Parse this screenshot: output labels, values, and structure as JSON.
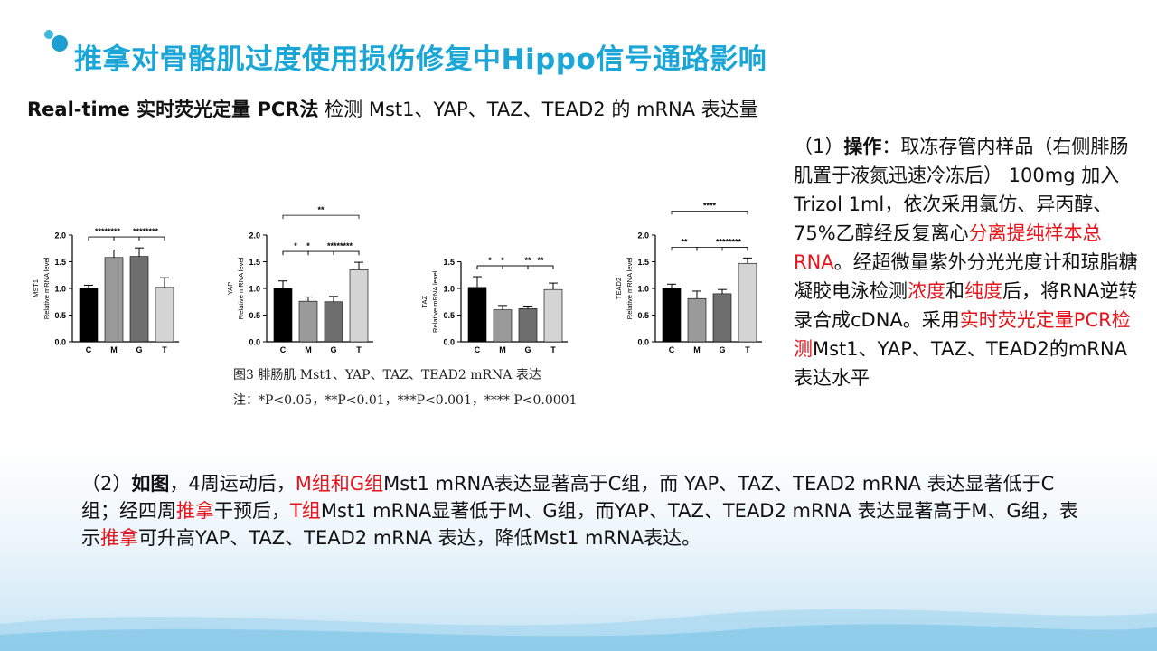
{
  "title": "推拿对骨骼肌过度使用损伤修复中Hippo信号通路影响",
  "subtitle": {
    "bold_part": "Real-time 实时荧光定量 PCR法",
    "rest": " 检测 Mst1、YAP、TAZ、TEAD2 的 mRNA 表达量"
  },
  "figure": {
    "caption": "图3  腓肠肌 Mst1、YAP、TAZ、TEAD2 mRNA 表达",
    "note": "注：*P<0.05，**P<0.01，***P<0.001，**** P<0.0001"
  },
  "right_panel": {
    "p1": "（1）",
    "p2": "操作",
    "p3": "：取冻存管内样品（右侧腓肠肌置于液氮迅速冷冻后） 100mg 加入 Trizol 1ml，依次采用氯仿、异丙醇、75%乙醇经反复离心",
    "p4": "分离提纯样本总RNA",
    "p5": "。经超微量紫外分光光度计和琼脂糖凝胶电泳检测",
    "p6": "浓度",
    "p7": "和",
    "p8": "纯度",
    "p9": "后，将RNA逆转录合成cDNA。采用",
    "p10": "实时荧光定量PCR检测",
    "p11": "Mst1、YAP、TAZ、TEAD2的mRNA表达水平"
  },
  "bottom_panel": {
    "b1": "（2）",
    "b2": "如图",
    "b3": "，4周运动后，",
    "b4": "M组和G组",
    "b5": "Mst1 mRNA表达显著高于C组，而 YAP、TAZ、TEAD2 mRNA 表达显著低于C组；经四周",
    "b6": "推拿",
    "b7": "干预后，",
    "b8": "T组",
    "b9": "Mst1 mRNA显著低于M、G组，而YAP、TAZ、TEAD2 mRNA 表达显著高于M、G组，表示",
    "b10": "推拿",
    "b11": "可升高YAP、TAZ、TEAD2 mRNA 表达，降低Mst1 mRNA表达。"
  },
  "colors": {
    "title": "#1aa7d8",
    "highlight": "#e8121a",
    "bar_fills": [
      "#000000",
      "#9a9a9a",
      "#6e6e6e",
      "#d4d4d4"
    ]
  },
  "chart_data": [
    {
      "type": "bar",
      "ylabel": "MST1\nRelative mRNA level",
      "categories": [
        "C",
        "M",
        "G",
        "T"
      ],
      "values": [
        1.0,
        1.58,
        1.6,
        1.02
      ],
      "errors": [
        0.06,
        0.14,
        0.16,
        0.18
      ],
      "ylim": [
        0,
        2.0
      ],
      "yticks": [
        "0.0",
        "0.5",
        "1.0",
        "1.5",
        "2.0"
      ],
      "significance": [
        {
          "from": "C",
          "to": "M",
          "label": "****"
        },
        {
          "from": "G",
          "to": "T",
          "label": "****"
        },
        {
          "from": "C",
          "to": "G",
          "label": "****"
        },
        {
          "from": "M",
          "to": "T",
          "label": "****"
        }
      ]
    },
    {
      "type": "bar",
      "ylabel": "YAP\nRelative mRNA level",
      "categories": [
        "C",
        "M",
        "G",
        "T"
      ],
      "values": [
        1.0,
        0.76,
        0.75,
        1.35
      ],
      "errors": [
        0.14,
        0.08,
        0.1,
        0.14
      ],
      "ylim": [
        0,
        2.0
      ],
      "yticks": [
        "0.0",
        "0.5",
        "1.0",
        "1.5",
        "2.0"
      ],
      "significance": [
        {
          "from": "C",
          "to": "M",
          "label": "*"
        },
        {
          "from": "G",
          "to": "T",
          "label": "****"
        },
        {
          "from": "C",
          "to": "G",
          "label": "*"
        },
        {
          "from": "M",
          "to": "T",
          "label": "****"
        },
        {
          "from": "C",
          "to": "T",
          "label": "**"
        }
      ]
    },
    {
      "type": "bar",
      "ylabel": "TAZ\nRelative mRNA level",
      "categories": [
        "C",
        "M",
        "G",
        "T"
      ],
      "values": [
        1.02,
        0.6,
        0.62,
        0.98
      ],
      "errors": [
        0.2,
        0.08,
        0.05,
        0.12
      ],
      "ylim": [
        0,
        1.5
      ],
      "yticks": [
        "0.0",
        "0.5",
        "1.0",
        "1.5"
      ],
      "significance": [
        {
          "from": "C",
          "to": "M",
          "label": "*"
        },
        {
          "from": "G",
          "to": "T",
          "label": "**"
        },
        {
          "from": "C",
          "to": "G",
          "label": "*"
        },
        {
          "from": "M",
          "to": "T",
          "label": "**"
        }
      ]
    },
    {
      "type": "bar",
      "ylabel": "TEAD2\nRelative mRNA level",
      "categories": [
        "C",
        "M",
        "G",
        "T"
      ],
      "values": [
        1.0,
        0.81,
        0.9,
        1.47
      ],
      "errors": [
        0.08,
        0.14,
        0.08,
        0.1
      ],
      "ylim": [
        0,
        2.0
      ],
      "yticks": [
        "0.0",
        "0.5",
        "1.0",
        "1.5",
        "2.0"
      ],
      "significance": [
        {
          "from": "C",
          "to": "M",
          "label": "**"
        },
        {
          "from": "G",
          "to": "T",
          "label": "****"
        },
        {
          "from": "M",
          "to": "T",
          "label": "****"
        },
        {
          "from": "C",
          "to": "T",
          "label": "****"
        }
      ]
    }
  ]
}
